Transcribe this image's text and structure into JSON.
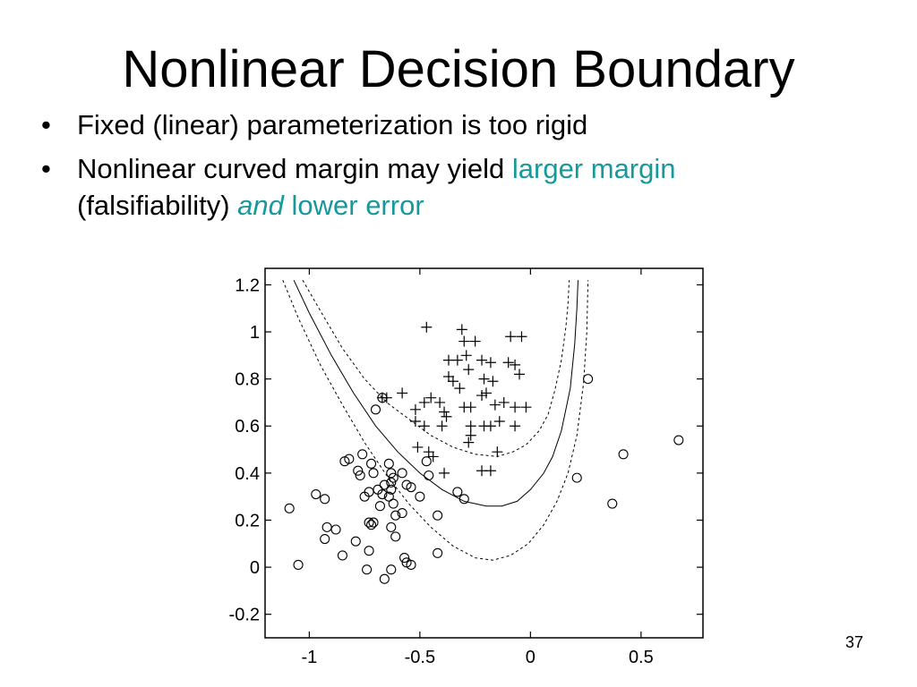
{
  "slide": {
    "title": "Nonlinear Decision Boundary",
    "bullets": [
      {
        "text": "Fixed (linear) parameterization is too rigid"
      },
      {
        "text": "Nonlinear curved margin may yield ",
        "accent1": "larger margin",
        "line2": "(falsifiability) ",
        "accent_italic": "and",
        "accent2": " lower error"
      }
    ],
    "bullet_symbol": "•",
    "page_number": "37",
    "accent_color": "#17999b"
  },
  "chart_data": {
    "type": "scatter",
    "title": "",
    "xlabel": "",
    "ylabel": "",
    "xlim": [
      -1.2,
      0.78
    ],
    "ylim": [
      -0.3,
      1.27
    ],
    "x_ticks": [
      -1,
      -0.5,
      0,
      0.5
    ],
    "x_tick_labels": [
      "-1",
      "-0.5",
      "0",
      "0.5"
    ],
    "y_ticks": [
      -0.2,
      0,
      0.2,
      0.4,
      0.6,
      0.8,
      1,
      1.2
    ],
    "y_tick_labels": [
      "-0.2",
      "0",
      "0.2",
      "0.4",
      "0.6",
      "0.8",
      "1",
      "1.2"
    ],
    "grid": false,
    "series": [
      {
        "marker": "plus",
        "points": [
          [
            -0.47,
            1.02
          ],
          [
            -0.31,
            1.01
          ],
          [
            -0.3,
            0.96
          ],
          [
            -0.25,
            0.96
          ],
          [
            -0.09,
            0.98
          ],
          [
            -0.04,
            0.98
          ],
          [
            -0.37,
            0.88
          ],
          [
            -0.33,
            0.88
          ],
          [
            -0.29,
            0.9
          ],
          [
            -0.22,
            0.88
          ],
          [
            -0.18,
            0.87
          ],
          [
            -0.1,
            0.87
          ],
          [
            -0.37,
            0.81
          ],
          [
            -0.35,
            0.79
          ],
          [
            -0.28,
            0.84
          ],
          [
            -0.21,
            0.8
          ],
          [
            -0.07,
            0.86
          ],
          [
            -0.05,
            0.82
          ],
          [
            -0.67,
            0.72
          ],
          [
            -0.65,
            0.72
          ],
          [
            -0.58,
            0.74
          ],
          [
            -0.52,
            0.67
          ],
          [
            -0.48,
            0.7
          ],
          [
            -0.41,
            0.7
          ],
          [
            -0.38,
            0.64
          ],
          [
            -0.32,
            0.76
          ],
          [
            -0.2,
            0.74
          ],
          [
            -0.17,
            0.79
          ],
          [
            -0.12,
            0.7
          ],
          [
            -0.52,
            0.62
          ],
          [
            -0.45,
            0.72
          ],
          [
            -0.39,
            0.66
          ],
          [
            -0.3,
            0.68
          ],
          [
            -0.27,
            0.68
          ],
          [
            -0.22,
            0.73
          ],
          [
            -0.16,
            0.69
          ],
          [
            -0.07,
            0.68
          ],
          [
            -0.02,
            0.68
          ],
          [
            -0.48,
            0.6
          ],
          [
            -0.4,
            0.6
          ],
          [
            -0.27,
            0.6
          ],
          [
            -0.27,
            0.56
          ],
          [
            -0.21,
            0.6
          ],
          [
            -0.18,
            0.6
          ],
          [
            -0.14,
            0.62
          ],
          [
            -0.07,
            0.6
          ],
          [
            -0.51,
            0.51
          ],
          [
            -0.46,
            0.49
          ],
          [
            -0.44,
            0.47
          ],
          [
            -0.39,
            0.4
          ],
          [
            -0.28,
            0.53
          ],
          [
            -0.22,
            0.41
          ],
          [
            -0.18,
            0.41
          ],
          [
            -0.15,
            0.49
          ]
        ]
      },
      {
        "marker": "circle",
        "points": [
          [
            -0.7,
            0.67
          ],
          [
            -0.67,
            0.72
          ],
          [
            -1.09,
            0.25
          ],
          [
            -1.05,
            0.01
          ],
          [
            -0.97,
            0.31
          ],
          [
            -0.93,
            0.29
          ],
          [
            -0.93,
            0.12
          ],
          [
            -0.92,
            0.17
          ],
          [
            -0.88,
            0.16
          ],
          [
            -0.85,
            0.05
          ],
          [
            -0.84,
            0.45
          ],
          [
            -0.82,
            0.46
          ],
          [
            -0.78,
            0.41
          ],
          [
            -0.77,
            0.39
          ],
          [
            -0.76,
            0.48
          ],
          [
            -0.79,
            0.11
          ],
          [
            -0.73,
            0.19
          ],
          [
            -0.72,
            0.18
          ],
          [
            -0.71,
            0.19
          ],
          [
            -0.73,
            0.07
          ],
          [
            -0.74,
            -0.01
          ],
          [
            -0.72,
            0.44
          ],
          [
            -0.71,
            0.4
          ],
          [
            -0.69,
            0.33
          ],
          [
            -0.68,
            0.26
          ],
          [
            -0.66,
            0.35
          ],
          [
            -0.63,
            0.33
          ],
          [
            -0.64,
            0.44
          ],
          [
            -0.63,
            0.36
          ],
          [
            -0.62,
            0.38
          ],
          [
            -0.64,
            0.3
          ],
          [
            -0.62,
            0.27
          ],
          [
            -0.61,
            0.22
          ],
          [
            -0.63,
            0.17
          ],
          [
            -0.61,
            0.13
          ],
          [
            -0.58,
            0.23
          ],
          [
            -0.58,
            0.4
          ],
          [
            -0.56,
            0.35
          ],
          [
            -0.54,
            0.34
          ],
          [
            -0.5,
            0.3
          ],
          [
            -0.47,
            0.45
          ],
          [
            -0.46,
            0.39
          ],
          [
            -0.42,
            0.22
          ],
          [
            -0.42,
            0.06
          ],
          [
            -0.33,
            0.32
          ],
          [
            -0.3,
            0.29
          ],
          [
            -0.57,
            0.04
          ],
          [
            -0.56,
            0.02
          ],
          [
            -0.54,
            0.01
          ],
          [
            -0.63,
            -0.01
          ],
          [
            -0.66,
            -0.05
          ],
          [
            -0.63,
            0.4
          ],
          [
            0.21,
            0.38
          ],
          [
            0.26,
            0.8
          ],
          [
            0.37,
            0.27
          ],
          [
            0.42,
            0.48
          ],
          [
            0.67,
            0.54
          ],
          [
            -0.75,
            0.3
          ],
          [
            -0.73,
            0.32
          ],
          [
            -0.67,
            0.31
          ]
        ]
      }
    ],
    "boundary_lines": [
      {
        "style": "solid",
        "points": [
          [
            -1.07,
            1.22
          ],
          [
            -1.0,
            1.08
          ],
          [
            -0.9,
            0.9
          ],
          [
            -0.8,
            0.74
          ],
          [
            -0.7,
            0.6
          ],
          [
            -0.6,
            0.49
          ],
          [
            -0.5,
            0.4
          ],
          [
            -0.4,
            0.33
          ],
          [
            -0.3,
            0.28
          ],
          [
            -0.2,
            0.26
          ],
          [
            -0.13,
            0.26
          ],
          [
            -0.06,
            0.28
          ],
          [
            0.0,
            0.33
          ],
          [
            0.06,
            0.4
          ],
          [
            0.1,
            0.47
          ],
          [
            0.14,
            0.58
          ],
          [
            0.18,
            0.76
          ],
          [
            0.2,
            0.95
          ],
          [
            0.21,
            1.1
          ],
          [
            0.215,
            1.22
          ]
        ]
      },
      {
        "style": "dashed",
        "points": [
          [
            -1.12,
            1.22
          ],
          [
            -1.05,
            1.06
          ],
          [
            -0.95,
            0.86
          ],
          [
            -0.85,
            0.69
          ],
          [
            -0.75,
            0.53
          ],
          [
            -0.65,
            0.39
          ],
          [
            -0.55,
            0.27
          ],
          [
            -0.45,
            0.17
          ],
          [
            -0.35,
            0.09
          ],
          [
            -0.25,
            0.04
          ],
          [
            -0.17,
            0.03
          ],
          [
            -0.09,
            0.05
          ],
          [
            -0.01,
            0.1
          ],
          [
            0.06,
            0.18
          ],
          [
            0.12,
            0.28
          ],
          [
            0.17,
            0.4
          ],
          [
            0.21,
            0.56
          ],
          [
            0.24,
            0.78
          ],
          [
            0.255,
            1.0
          ],
          [
            0.26,
            1.22
          ]
        ]
      },
      {
        "style": "dashed",
        "points": [
          [
            -1.03,
            1.22
          ],
          [
            -0.95,
            1.09
          ],
          [
            -0.85,
            0.93
          ],
          [
            -0.75,
            0.8
          ],
          [
            -0.65,
            0.7
          ],
          [
            -0.55,
            0.63
          ],
          [
            -0.45,
            0.56
          ],
          [
            -0.35,
            0.51
          ],
          [
            -0.25,
            0.48
          ],
          [
            -0.15,
            0.47
          ],
          [
            -0.08,
            0.49
          ],
          [
            -0.02,
            0.52
          ],
          [
            0.04,
            0.58
          ],
          [
            0.08,
            0.65
          ],
          [
            0.11,
            0.75
          ],
          [
            0.14,
            0.88
          ],
          [
            0.16,
            1.02
          ],
          [
            0.17,
            1.12
          ],
          [
            0.175,
            1.22
          ]
        ]
      }
    ]
  }
}
